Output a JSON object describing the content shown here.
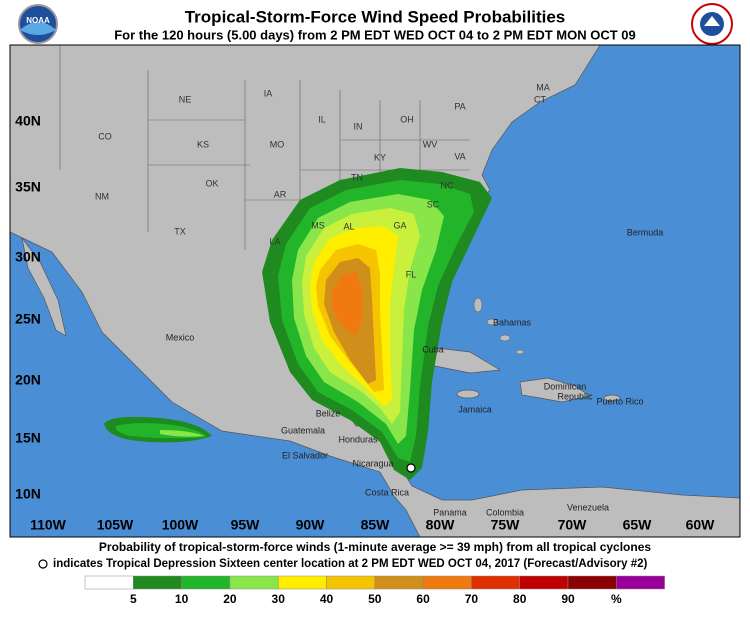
{
  "header": {
    "title": "Tropical-Storm-Force Wind Speed Probabilities",
    "subtitle": "For the 120 hours (5.00 days) from 2 PM EDT WED OCT 04 to 2 PM EDT MON OCT 09",
    "logo": "NOAA"
  },
  "map": {
    "lat_labels": [
      "40N",
      "35N",
      "30N",
      "25N",
      "20N",
      "15N",
      "10N"
    ],
    "lon_labels": [
      "110W",
      "105W",
      "100W",
      "95W",
      "90W",
      "85W",
      "80W",
      "75W",
      "70W",
      "65W",
      "60W"
    ],
    "state_labels": [
      "NE",
      "IA",
      "IL",
      "IN",
      "OH",
      "PA",
      "MA",
      "CT",
      "MO",
      "KS",
      "KY",
      "WV",
      "VA",
      "CO",
      "OK",
      "AR",
      "TN",
      "NC",
      "SC",
      "NM",
      "TX",
      "MS",
      "AL",
      "GA",
      "LA",
      "FL"
    ],
    "place_labels": [
      "Mexico",
      "Cuba",
      "Bahamas",
      "Bermuda",
      "Jamaica",
      "Dominican",
      "Republic",
      "Puerto Rico",
      "Belize",
      "Guatemala",
      "Honduras",
      "El Salvador",
      "Nicaragua",
      "Costa Rica",
      "Panama",
      "Colombia",
      "Venezuela"
    ]
  },
  "legend": {
    "caption": "Probability of tropical-storm-force winds (1-minute average >= 39 mph) from all tropical cyclones",
    "note": "indicates Tropical Depression Sixteen center location at 2 PM EDT WED OCT 04, 2017 (Forecast/Advisory #2)",
    "scale": [
      "5",
      "10",
      "20",
      "30",
      "40",
      "50",
      "60",
      "70",
      "80",
      "90",
      "%"
    ]
  }
}
